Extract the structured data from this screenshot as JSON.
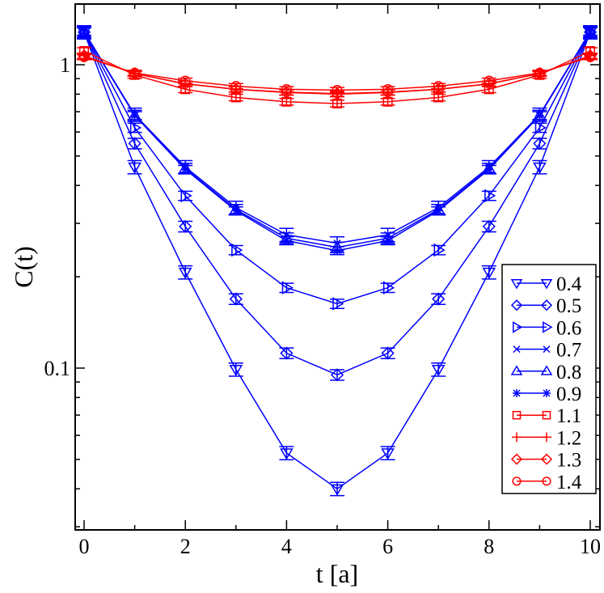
{
  "chart_data": {
    "type": "line",
    "title": "",
    "xlabel": "t [a]",
    "ylabel": "C(t)",
    "xlim": [
      -0.2,
      10.2
    ],
    "ylim": [
      0.033,
      1.4
    ],
    "yscale": "log",
    "x_ticks": [
      0,
      2,
      4,
      6,
      8,
      10
    ],
    "x_tick_labels": [
      "0",
      "2",
      "4",
      "6",
      "8",
      "10"
    ],
    "y_ticks": [
      0.1,
      1
    ],
    "y_tick_labels": [
      "0.1",
      "1"
    ],
    "grid": false,
    "legend_position": "bottom-right",
    "x": [
      0,
      1,
      2,
      3,
      4,
      5,
      6,
      7,
      8,
      9,
      10
    ],
    "series": [
      {
        "name": "0.4",
        "color": "#0000ff",
        "marker": "triangle-down",
        "values": [
          1.28,
          0.46,
          0.207,
          0.099,
          0.0525,
          0.04,
          0.0525,
          0.099,
          0.207,
          0.46,
          1.28
        ],
        "yerr_rel": 0.05
      },
      {
        "name": "0.5",
        "color": "#0000ff",
        "marker": "diamond",
        "values": [
          1.28,
          0.55,
          0.293,
          0.169,
          0.112,
          0.095,
          0.112,
          0.169,
          0.293,
          0.55,
          1.28
        ],
        "yerr_rel": 0.04
      },
      {
        "name": "0.6",
        "color": "#0000ff",
        "marker": "triangle-right",
        "values": [
          1.28,
          0.62,
          0.37,
          0.245,
          0.184,
          0.163,
          0.184,
          0.245,
          0.37,
          0.62,
          1.28
        ],
        "yerr_rel": 0.035
      },
      {
        "name": "0.7",
        "color": "#0000ff",
        "marker": "x",
        "values": [
          1.28,
          0.685,
          0.46,
          0.338,
          0.275,
          0.258,
          0.275,
          0.338,
          0.46,
          0.685,
          1.28
        ],
        "yerr_rel": 0.05
      },
      {
        "name": "0.8",
        "color": "#0000ff",
        "marker": "triangle-up",
        "values": [
          1.28,
          0.68,
          0.455,
          0.333,
          0.268,
          0.25,
          0.268,
          0.333,
          0.455,
          0.68,
          1.28
        ],
        "yerr_rel": 0.04
      },
      {
        "name": "0.9",
        "color": "#0000ff",
        "marker": "star",
        "values": [
          1.29,
          0.68,
          0.452,
          0.33,
          0.263,
          0.244,
          0.263,
          0.33,
          0.452,
          0.68,
          1.29
        ],
        "yerr_rel": 0.03
      },
      {
        "name": "1.1",
        "color": "#ff0000",
        "marker": "square",
        "values": [
          1.11,
          0.925,
          0.83,
          0.78,
          0.755,
          0.745,
          0.755,
          0.78,
          0.83,
          0.925,
          1.11
        ],
        "yerr_rel": 0.025
      },
      {
        "name": "1.2",
        "color": "#ff0000",
        "marker": "plus",
        "values": [
          1.07,
          0.935,
          0.865,
          0.83,
          0.81,
          0.8,
          0.81,
          0.83,
          0.865,
          0.935,
          1.07
        ],
        "yerr_rel": 0.02
      },
      {
        "name": "1.3",
        "color": "#ff0000",
        "marker": "diamond",
        "values": [
          1.07,
          0.935,
          0.865,
          0.83,
          0.812,
          0.803,
          0.812,
          0.83,
          0.865,
          0.935,
          1.07
        ],
        "yerr_rel": 0.02
      },
      {
        "name": "1.4",
        "color": "#ff0000",
        "marker": "circle",
        "values": [
          1.06,
          0.94,
          0.885,
          0.85,
          0.83,
          0.825,
          0.83,
          0.85,
          0.885,
          0.94,
          1.06
        ],
        "yerr_rel": 0.02
      }
    ]
  }
}
